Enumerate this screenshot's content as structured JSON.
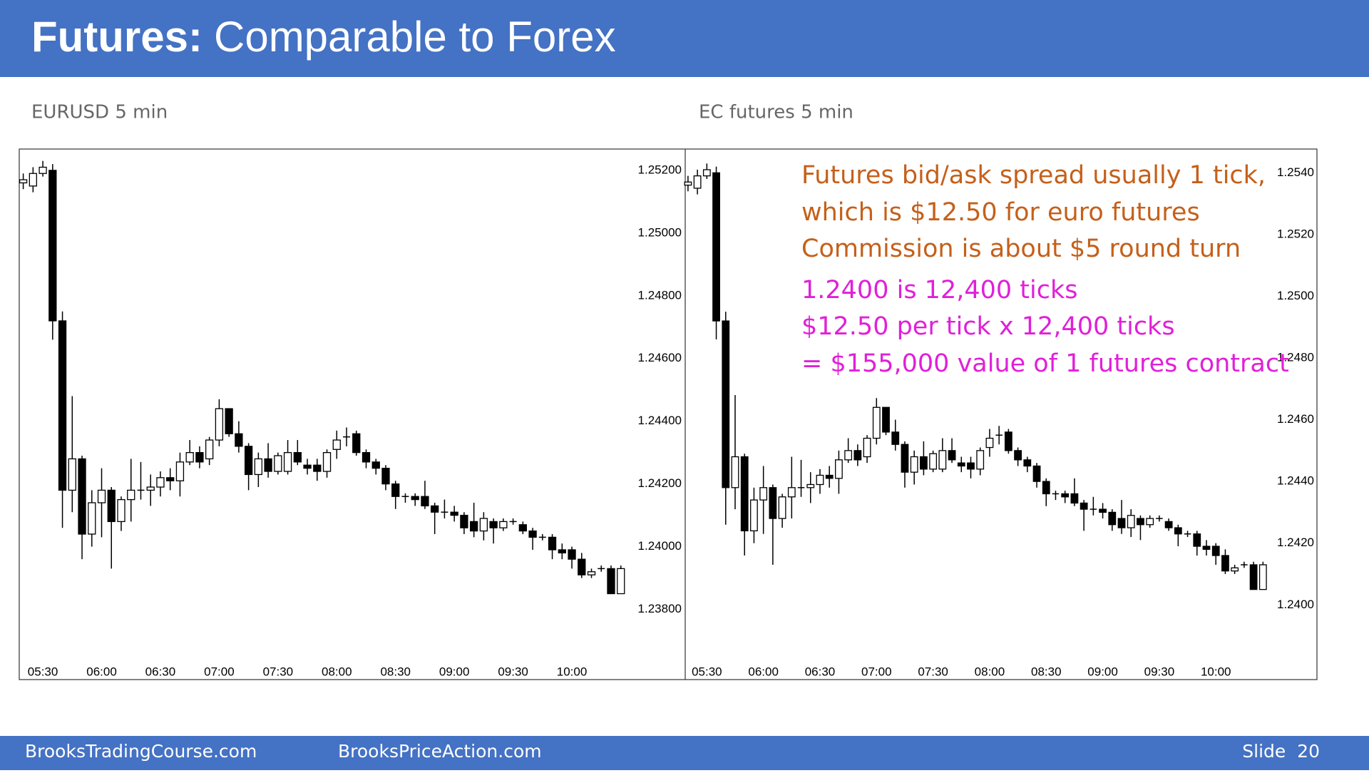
{
  "title_bold": "Futures:",
  "title_rest": "Comparable to Forex",
  "footer": [
    "BrooksTradingCourse.com",
    "BrooksPriceAction.com"
  ],
  "slide": "Slide  20",
  "chart_data": [
    {
      "type": "candlestick",
      "title": "EURUSD 5 min",
      "x": [
        "05:20",
        "05:25",
        "05:30",
        "05:35",
        "05:40",
        "05:45",
        "05:50",
        "05:55",
        "06:00",
        "06:05",
        "06:10",
        "06:15",
        "06:20",
        "06:25",
        "06:30",
        "06:35",
        "06:40",
        "06:45",
        "06:50",
        "06:55",
        "07:00",
        "07:05",
        "07:10",
        "07:15",
        "07:20",
        "07:25",
        "07:30",
        "07:35",
        "07:40",
        "07:45",
        "07:50",
        "07:55",
        "08:00",
        "08:05",
        "08:10",
        "08:15",
        "08:20",
        "08:25",
        "08:30",
        "08:35",
        "08:40",
        "08:45",
        "08:50",
        "08:55",
        "09:00",
        "09:05",
        "09:10",
        "09:15",
        "09:20",
        "09:25",
        "09:30",
        "09:35",
        "09:40",
        "09:45",
        "09:50",
        "09:55",
        "10:00",
        "10:05",
        "10:10",
        "10:15",
        "10:20",
        "10:25"
      ],
      "xticks": [
        "05:30",
        "06:00",
        "06:30",
        "07:00",
        "07:30",
        "08:00",
        "08:30",
        "09:00",
        "09:30",
        "10:00"
      ],
      "open": [
        1.2516,
        1.2515,
        1.2519,
        1.252,
        1.2472,
        1.2418,
        1.2428,
        1.2404,
        1.2414,
        1.2418,
        1.2408,
        1.2415,
        1.2418,
        1.2418,
        1.2419,
        1.2422,
        1.2421,
        1.2427,
        1.243,
        1.2428,
        1.2434,
        1.2444,
        1.2436,
        1.2432,
        1.2423,
        1.2428,
        1.2424,
        1.2424,
        1.243,
        1.2426,
        1.2426,
        1.2424,
        1.2431,
        1.2435,
        1.2436,
        1.243,
        1.2427,
        1.2425,
        1.242,
        1.2416,
        1.2416,
        1.2416,
        1.2413,
        1.2411,
        1.2411,
        1.241,
        1.2408,
        1.2405,
        1.2408,
        1.2406,
        1.2408,
        1.2407,
        1.2405,
        1.2403,
        1.2403,
        1.2399,
        1.2399,
        1.2396,
        1.2391,
        1.2393,
        1.2393,
        1.2385
      ],
      "high": [
        1.2519,
        1.2521,
        1.2523,
        1.2522,
        1.2475,
        1.2448,
        1.2429,
        1.2418,
        1.2425,
        1.2419,
        1.2416,
        1.2428,
        1.2427,
        1.2423,
        1.2424,
        1.2425,
        1.243,
        1.2434,
        1.2432,
        1.2435,
        1.2447,
        1.2444,
        1.244,
        1.2433,
        1.243,
        1.2433,
        1.243,
        1.2434,
        1.2434,
        1.2428,
        1.2428,
        1.2431,
        1.2437,
        1.2438,
        1.2437,
        1.2431,
        1.2428,
        1.2426,
        1.2421,
        1.2417,
        1.2417,
        1.2421,
        1.2414,
        1.2415,
        1.2413,
        1.2411,
        1.2414,
        1.2411,
        1.2409,
        1.2409,
        1.2409,
        1.2408,
        1.2406,
        1.2404,
        1.2404,
        1.2401,
        1.24,
        1.2398,
        1.2393,
        1.2394,
        1.2394,
        1.2394
      ],
      "low": [
        1.2514,
        1.2513,
        1.2518,
        1.2466,
        1.2406,
        1.2411,
        1.2396,
        1.24,
        1.2403,
        1.2393,
        1.2405,
        1.2408,
        1.2415,
        1.2413,
        1.2416,
        1.2418,
        1.2416,
        1.2426,
        1.2425,
        1.2426,
        1.2432,
        1.2435,
        1.243,
        1.2418,
        1.2419,
        1.2422,
        1.2423,
        1.2423,
        1.2426,
        1.2423,
        1.2421,
        1.2422,
        1.2428,
        1.2432,
        1.2429,
        1.2425,
        1.2423,
        1.2418,
        1.2412,
        1.2414,
        1.2413,
        1.2412,
        1.2404,
        1.2409,
        1.2408,
        1.2404,
        1.2403,
        1.2402,
        1.2401,
        1.2405,
        1.2407,
        1.2404,
        1.2399,
        1.2402,
        1.2396,
        1.2396,
        1.2393,
        1.239,
        1.239,
        1.2392,
        1.2385,
        1.2385
      ],
      "close": [
        1.2517,
        1.2519,
        1.2521,
        1.2472,
        1.2418,
        1.2428,
        1.2404,
        1.2414,
        1.2418,
        1.2408,
        1.2415,
        1.2418,
        1.2418,
        1.2419,
        1.2422,
        1.2421,
        1.2427,
        1.243,
        1.2427,
        1.2434,
        1.2444,
        1.2436,
        1.2432,
        1.2423,
        1.2428,
        1.2424,
        1.2429,
        1.243,
        1.2427,
        1.2425,
        1.2424,
        1.243,
        1.2434,
        1.2435,
        1.243,
        1.2427,
        1.2425,
        1.242,
        1.2416,
        1.2416,
        1.2415,
        1.2413,
        1.2411,
        1.2411,
        1.241,
        1.2406,
        1.2405,
        1.2409,
        1.2406,
        1.2408,
        1.2408,
        1.2405,
        1.2403,
        1.2403,
        1.2399,
        1.2398,
        1.2396,
        1.2391,
        1.2392,
        1.2393,
        1.2385,
        1.2393
      ],
      "ylim": [
        1.23577,
        1.25267
      ],
      "yticks": [
        {
          "value": 1.238,
          "label": "1.23800"
        },
        {
          "value": 1.24,
          "label": "1.24000"
        },
        {
          "value": 1.242,
          "label": "1.24200"
        },
        {
          "value": 1.244,
          "label": "1.24400"
        },
        {
          "value": 1.246,
          "label": "1.24600"
        },
        {
          "value": 1.248,
          "label": "1.24800"
        },
        {
          "value": 1.25,
          "label": "1.25000"
        },
        {
          "value": 1.252,
          "label": "1.25200"
        }
      ]
    },
    {
      "type": "candlestick",
      "title": "EC futures 5 min",
      "x": [
        "05:20",
        "05:25",
        "05:30",
        "05:35",
        "05:40",
        "05:45",
        "05:50",
        "05:55",
        "06:00",
        "06:05",
        "06:10",
        "06:15",
        "06:20",
        "06:25",
        "06:30",
        "06:35",
        "06:40",
        "06:45",
        "06:50",
        "06:55",
        "07:00",
        "07:05",
        "07:10",
        "07:15",
        "07:20",
        "07:25",
        "07:30",
        "07:35",
        "07:40",
        "07:45",
        "07:50",
        "07:55",
        "08:00",
        "08:05",
        "08:10",
        "08:15",
        "08:20",
        "08:25",
        "08:30",
        "08:35",
        "08:40",
        "08:45",
        "08:50",
        "08:55",
        "09:00",
        "09:05",
        "09:10",
        "09:15",
        "09:20",
        "09:25",
        "09:30",
        "09:35",
        "09:40",
        "09:45",
        "09:50",
        "09:55",
        "10:00",
        "10:05",
        "10:10",
        "10:15",
        "10:20",
        "10:25"
      ],
      "xticks": [
        "05:30",
        "06:00",
        "06:30",
        "07:00",
        "07:30",
        "08:00",
        "08:30",
        "09:00",
        "09:30",
        "10:00"
      ],
      "open": [
        1.2536,
        1.2535,
        1.2539,
        1.254,
        1.2492,
        1.2438,
        1.2448,
        1.2424,
        1.2434,
        1.2438,
        1.2428,
        1.2435,
        1.2438,
        1.2438,
        1.2439,
        1.2442,
        1.2441,
        1.2447,
        1.245,
        1.2448,
        1.2454,
        1.2464,
        1.2456,
        1.2452,
        1.2443,
        1.2448,
        1.2444,
        1.2444,
        1.245,
        1.2446,
        1.2446,
        1.2444,
        1.2451,
        1.2455,
        1.2456,
        1.245,
        1.2447,
        1.2445,
        1.244,
        1.2436,
        1.2436,
        1.2436,
        1.2433,
        1.2431,
        1.2431,
        1.243,
        1.2428,
        1.2425,
        1.2428,
        1.2426,
        1.2428,
        1.2427,
        1.2425,
        1.2423,
        1.2423,
        1.2419,
        1.2419,
        1.2416,
        1.2411,
        1.2413,
        1.2413,
        1.2405
      ],
      "high": [
        1.2539,
        1.2541,
        1.2543,
        1.2542,
        1.2495,
        1.2468,
        1.2449,
        1.2438,
        1.2445,
        1.2439,
        1.2436,
        1.2448,
        1.2447,
        1.2443,
        1.2444,
        1.2445,
        1.245,
        1.2454,
        1.2452,
        1.2455,
        1.2467,
        1.2464,
        1.246,
        1.2453,
        1.245,
        1.2453,
        1.245,
        1.2454,
        1.2454,
        1.2448,
        1.2448,
        1.2451,
        1.2457,
        1.2458,
        1.2457,
        1.2451,
        1.2448,
        1.2446,
        1.2441,
        1.2437,
        1.2437,
        1.2441,
        1.2434,
        1.2435,
        1.2433,
        1.2431,
        1.2434,
        1.2431,
        1.2429,
        1.2429,
        1.2429,
        1.2428,
        1.2426,
        1.2424,
        1.2424,
        1.2421,
        1.242,
        1.2418,
        1.2413,
        1.2414,
        1.2414,
        1.2414
      ],
      "low": [
        1.2534,
        1.2533,
        1.2538,
        1.2486,
        1.2426,
        1.2431,
        1.2416,
        1.242,
        1.2423,
        1.2413,
        1.2425,
        1.2428,
        1.2435,
        1.2433,
        1.2436,
        1.2438,
        1.2436,
        1.2446,
        1.2445,
        1.2446,
        1.2452,
        1.2455,
        1.245,
        1.2438,
        1.2439,
        1.2442,
        1.2443,
        1.2443,
        1.2446,
        1.2443,
        1.2441,
        1.2442,
        1.2448,
        1.2452,
        1.2449,
        1.2445,
        1.2443,
        1.2438,
        1.2432,
        1.2434,
        1.2433,
        1.2432,
        1.2424,
        1.2429,
        1.2428,
        1.2424,
        1.2423,
        1.2422,
        1.2421,
        1.2425,
        1.2427,
        1.2424,
        1.2419,
        1.2422,
        1.2416,
        1.2416,
        1.2413,
        1.241,
        1.241,
        1.2412,
        1.2405,
        1.2405
      ],
      "close": [
        1.2537,
        1.2539,
        1.2541,
        1.2492,
        1.2438,
        1.2448,
        1.2424,
        1.2434,
        1.2438,
        1.2428,
        1.2435,
        1.2438,
        1.2438,
        1.2439,
        1.2442,
        1.2441,
        1.2447,
        1.245,
        1.2447,
        1.2454,
        1.2464,
        1.2456,
        1.2452,
        1.2443,
        1.2448,
        1.2444,
        1.2449,
        1.245,
        1.2447,
        1.2445,
        1.2444,
        1.245,
        1.2454,
        1.2455,
        1.245,
        1.2447,
        1.2445,
        1.244,
        1.2436,
        1.2436,
        1.2435,
        1.2433,
        1.2431,
        1.2431,
        1.243,
        1.2426,
        1.2425,
        1.2429,
        1.2426,
        1.2428,
        1.2428,
        1.2425,
        1.2423,
        1.2423,
        1.2419,
        1.2418,
        1.2416,
        1.2411,
        1.2412,
        1.2413,
        1.2405,
        1.2413
      ],
      "ylim": [
        1.23759,
        1.25476
      ],
      "yticks": [
        {
          "value": 1.24,
          "label": "1.2400"
        },
        {
          "value": 1.242,
          "label": "1.2420"
        },
        {
          "value": 1.244,
          "label": "1.2440"
        },
        {
          "value": 1.246,
          "label": "1.2460"
        },
        {
          "value": 1.248,
          "label": "1.2480"
        },
        {
          "value": 1.25,
          "label": "1.2500"
        },
        {
          "value": 1.252,
          "label": "1.2520"
        },
        {
          "value": 1.254,
          "label": "1.2540"
        }
      ],
      "annotations": [
        {
          "text": "Futures bid/ask spread usually 1 tick,",
          "color": "#c5601a"
        },
        {
          "text": "which is $12.50 for euro futures",
          "color": "#c5601a"
        },
        {
          "text": "Commission is about $5 round turn",
          "color": "#c5601a"
        },
        {
          "text": "1.2400 is 12,400 ticks",
          "color": "#e020d8"
        },
        {
          "text": "$12.50 per tick x 12,400 ticks",
          "color": "#e020d8"
        },
        {
          "text": "= $155,000 value of 1 futures contract",
          "color": "#e020d8"
        }
      ]
    }
  ]
}
